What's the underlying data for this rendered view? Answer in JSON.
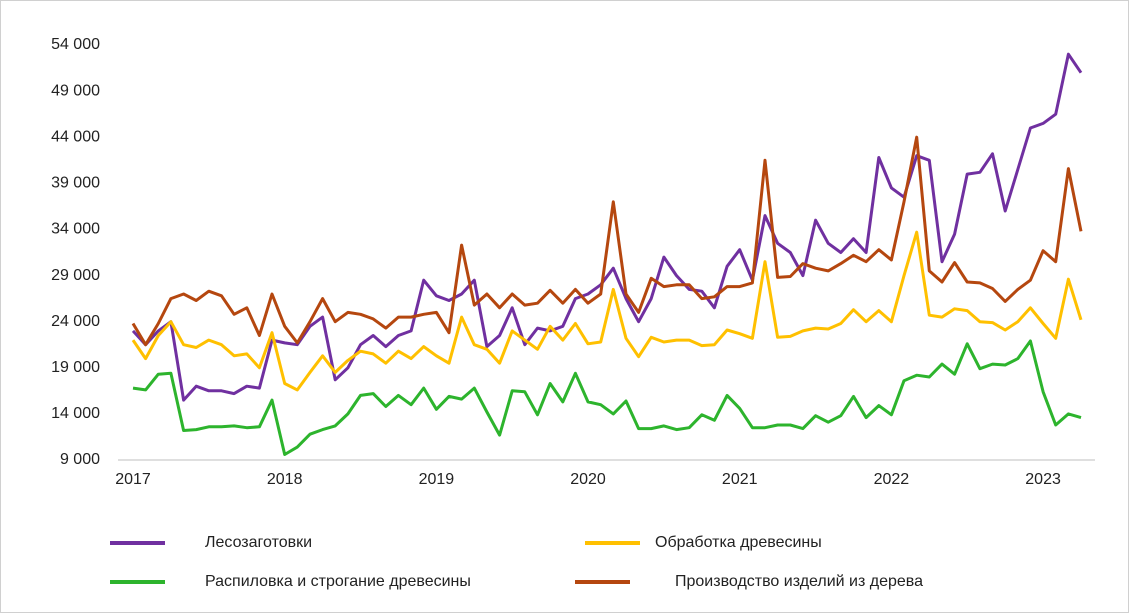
{
  "chart_data": {
    "type": "line",
    "categories": [
      "2017",
      null,
      null,
      null,
      null,
      null,
      null,
      null,
      null,
      null,
      null,
      null,
      "2018",
      null,
      null,
      null,
      null,
      null,
      null,
      null,
      null,
      null,
      null,
      null,
      "2019",
      null,
      null,
      null,
      null,
      null,
      null,
      null,
      null,
      null,
      null,
      null,
      "2020",
      null,
      null,
      null,
      null,
      null,
      null,
      null,
      null,
      null,
      null,
      null,
      "2021",
      null,
      null,
      null,
      null,
      null,
      null,
      null,
      null,
      null,
      null,
      null,
      "2022",
      null,
      null,
      null,
      null,
      null,
      null,
      null,
      null,
      null,
      null,
      null,
      "2023",
      null,
      null,
      null
    ],
    "series": [
      {
        "name": "Лесозаготовки",
        "color": "#7030a0",
        "values": [
          23000,
          21500,
          23000,
          24000,
          15500,
          17000,
          16500,
          16500,
          16200,
          17000,
          16800,
          22000,
          21700,
          21500,
          23500,
          24500,
          17700,
          19000,
          21500,
          22500,
          21300,
          22500,
          23000,
          28500,
          26800,
          26300,
          27000,
          28500,
          21300,
          22500,
          25500,
          21500,
          23300,
          23000,
          23500,
          26500,
          27000,
          28000,
          29800,
          26500,
          24000,
          26500,
          31000,
          29000,
          27500,
          27300,
          25500,
          30000,
          31800,
          28500,
          35500,
          32500,
          31500,
          29000,
          35000,
          32500,
          31500,
          33000,
          31500,
          41800,
          38500,
          37500,
          42000,
          41500,
          30500,
          33500,
          40000,
          40200,
          42200,
          36000,
          40500,
          45000,
          45500,
          46500,
          53000,
          51000
        ]
      },
      {
        "name": "Обработка древесины",
        "color": "#ffc000",
        "values": [
          22000,
          20000,
          22500,
          24000,
          21500,
          21200,
          22000,
          21500,
          20300,
          20500,
          19000,
          22800,
          17300,
          16600,
          18500,
          20300,
          18500,
          19800,
          20800,
          20500,
          19500,
          20800,
          20000,
          21300,
          20300,
          19500,
          24500,
          21500,
          21000,
          19500,
          23000,
          22000,
          21000,
          23500,
          22000,
          23800,
          21600,
          21800,
          27500,
          22200,
          20200,
          22300,
          21800,
          22000,
          22000,
          21400,
          21500,
          23100,
          22700,
          22200,
          30500,
          22300,
          22400,
          23000,
          23300,
          23200,
          23800,
          25300,
          24000,
          25200,
          24000,
          29000,
          33700,
          24700,
          24500,
          25400,
          25200,
          24000,
          23900,
          23100,
          24000,
          25500,
          23800,
          22200,
          28600,
          24200
        ]
      },
      {
        "name": "Распиловка и строгание древесины",
        "color": "#2db42d",
        "values": [
          16800,
          16600,
          18300,
          18400,
          12200,
          12300,
          12600,
          12600,
          12700,
          12500,
          12600,
          15500,
          9600,
          10400,
          11800,
          12300,
          12700,
          14000,
          16000,
          16200,
          14800,
          16000,
          15000,
          16800,
          14500,
          15900,
          15600,
          16800,
          14200,
          11700,
          16500,
          16400,
          13900,
          17300,
          15300,
          18400,
          15300,
          15000,
          14000,
          15400,
          12400,
          12400,
          12700,
          12300,
          12500,
          13900,
          13300,
          16000,
          14600,
          12500,
          12500,
          12800,
          12800,
          12400,
          13800,
          13100,
          13800,
          15900,
          13600,
          14900,
          13900,
          17600,
          18200,
          18000,
          19400,
          18300,
          21600,
          18900,
          19400,
          19300,
          20000,
          21900,
          16400,
          12800,
          14000,
          13600
        ]
      },
      {
        "name": "Производство изделий из дерева",
        "color": "#b5470f",
        "values": [
          23800,
          21500,
          23800,
          26500,
          27000,
          26300,
          27300,
          26800,
          24800,
          25500,
          22500,
          27000,
          23500,
          21700,
          24000,
          26500,
          24000,
          25000,
          24800,
          24300,
          23300,
          24500,
          24500,
          24800,
          25000,
          22800,
          32300,
          25800,
          27000,
          25500,
          27000,
          25800,
          26000,
          27400,
          26000,
          27500,
          26000,
          27000,
          37000,
          27000,
          25000,
          28700,
          27800,
          28000,
          28000,
          26500,
          26700,
          27800,
          27800,
          28200,
          41500,
          28800,
          28900,
          30300,
          29800,
          29500,
          30300,
          31200,
          30500,
          31800,
          30700,
          37000,
          44000,
          29500,
          28300,
          30400,
          28300,
          28200,
          27600,
          26200,
          27500,
          28500,
          31700,
          30500,
          40600,
          33800
        ]
      }
    ],
    "ylim": [
      9000,
      54000
    ],
    "yticks": [
      {
        "value": 9000,
        "label": "9 000"
      },
      {
        "value": 14000,
        "label": "14 000"
      },
      {
        "value": 19000,
        "label": "19 000"
      },
      {
        "value": 24000,
        "label": "24 000"
      },
      {
        "value": 29000,
        "label": "29 000"
      },
      {
        "value": 34000,
        "label": "34 000"
      },
      {
        "value": 39000,
        "label": "39 000"
      },
      {
        "value": 44000,
        "label": "44 000"
      },
      {
        "value": 49000,
        "label": "49 000"
      },
      {
        "value": 54000,
        "label": "54 000"
      }
    ],
    "grid": false,
    "legend": "bottom"
  }
}
